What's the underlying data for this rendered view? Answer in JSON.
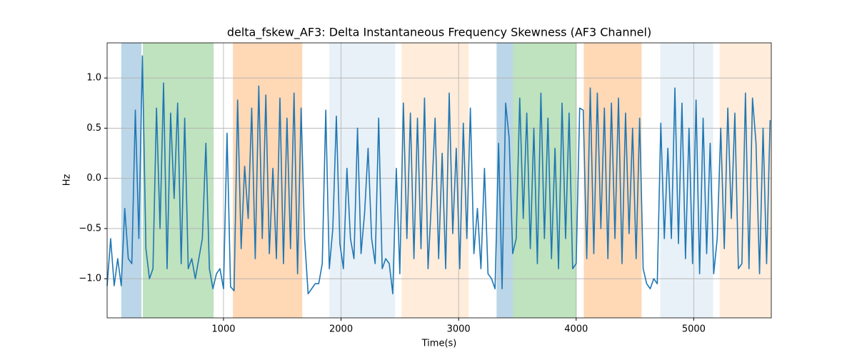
{
  "chart_data": {
    "type": "line",
    "title": "delta_fskew_AF3: Delta Instantaneous Frequency Skewness (AF3 Channel)",
    "xlabel": "Time(s)",
    "ylabel": "Hz",
    "xlim": [
      10,
      5660
    ],
    "ylim": [
      -1.39,
      1.35
    ],
    "xticks": [
      1000,
      2000,
      3000,
      4000,
      5000
    ],
    "yticks": [
      {
        "value": -1.0,
        "label": "−1.0"
      },
      {
        "value": -0.5,
        "label": "−0.5"
      },
      {
        "value": 0,
        "label": "0.0"
      },
      {
        "value": 0.5,
        "label": "0.5"
      },
      {
        "value": 1.0,
        "label": "1.0"
      }
    ],
    "grid": true,
    "spans": [
      {
        "start": 130,
        "end": 302,
        "color": "#1f77b4",
        "opacity": 0.3
      },
      {
        "start": 314,
        "end": 916,
        "color": "#2ca02c",
        "opacity": 0.3
      },
      {
        "start": 1080,
        "end": 1670,
        "color": "#ff7f0e",
        "opacity": 0.3
      },
      {
        "start": 1900,
        "end": 2460,
        "color": "#1f77b4",
        "opacity": 0.1
      },
      {
        "start": 2515,
        "end": 3085,
        "color": "#ff7f0e",
        "opacity": 0.15
      },
      {
        "start": 3323,
        "end": 3463,
        "color": "#1f77b4",
        "opacity": 0.3
      },
      {
        "start": 3463,
        "end": 4004,
        "color": "#2ca02c",
        "opacity": 0.3
      },
      {
        "start": 4065,
        "end": 4557,
        "color": "#ff7f0e",
        "opacity": 0.3
      },
      {
        "start": 4715,
        "end": 5165,
        "color": "#1f77b4",
        "opacity": 0.1
      },
      {
        "start": 5220,
        "end": 5660,
        "color": "#ff7f0e",
        "opacity": 0.15
      }
    ],
    "x": [
      10,
      40,
      70,
      100,
      130,
      160,
      190,
      220,
      250,
      280,
      310,
      340,
      370,
      400,
      430,
      460,
      490,
      520,
      550,
      580,
      610,
      640,
      670,
      700,
      730,
      760,
      790,
      820,
      850,
      880,
      910,
      940,
      970,
      1000,
      1030,
      1060,
      1090,
      1120,
      1150,
      1180,
      1210,
      1240,
      1270,
      1300,
      1330,
      1360,
      1390,
      1420,
      1450,
      1480,
      1510,
      1540,
      1570,
      1600,
      1630,
      1660,
      1690,
      1720,
      1750,
      1780,
      1810,
      1840,
      1870,
      1900,
      1930,
      1960,
      1990,
      2020,
      2050,
      2080,
      2110,
      2140,
      2170,
      2200,
      2230,
      2260,
      2290,
      2320,
      2350,
      2380,
      2410,
      2440,
      2470,
      2500,
      2530,
      2560,
      2590,
      2620,
      2650,
      2680,
      2710,
      2740,
      2770,
      2800,
      2830,
      2860,
      2890,
      2920,
      2950,
      2980,
      3010,
      3040,
      3070,
      3100,
      3130,
      3160,
      3190,
      3220,
      3250,
      3280,
      3310,
      3340,
      3370,
      3400,
      3430,
      3460,
      3490,
      3520,
      3550,
      3580,
      3610,
      3640,
      3670,
      3700,
      3730,
      3760,
      3790,
      3820,
      3850,
      3880,
      3910,
      3940,
      3970,
      4000,
      4030,
      4060,
      4090,
      4120,
      4150,
      4180,
      4210,
      4240,
      4270,
      4300,
      4330,
      4360,
      4390,
      4420,
      4450,
      4480,
      4510,
      4540,
      4570,
      4600,
      4630,
      4660,
      4690,
      4720,
      4750,
      4780,
      4810,
      4840,
      4870,
      4900,
      4930,
      4960,
      4990,
      5020,
      5050,
      5080,
      5110,
      5140,
      5170,
      5200,
      5230,
      5260,
      5290,
      5320,
      5350,
      5380,
      5410,
      5440,
      5470,
      5500,
      5530,
      5560,
      5590,
      5620,
      5650
    ],
    "series": [
      {
        "color": "#1f77b4",
        "values": [
          -1.07,
          -0.6,
          -1.07,
          -0.8,
          -1.07,
          -0.3,
          -0.8,
          -0.85,
          0.68,
          -0.6,
          1.22,
          -0.7,
          -1.0,
          -0.9,
          0.7,
          -0.5,
          0.95,
          -0.9,
          0.65,
          -0.2,
          0.75,
          -0.85,
          0.6,
          -0.9,
          -0.8,
          -1.0,
          -0.8,
          -0.6,
          0.35,
          -0.9,
          -1.1,
          -0.95,
          -0.9,
          -1.1,
          0.45,
          -1.08,
          -1.12,
          0.78,
          -0.7,
          0.12,
          -0.4,
          0.7,
          -0.8,
          0.92,
          -0.6,
          0.83,
          -0.75,
          0.1,
          -0.8,
          0.8,
          -0.85,
          0.6,
          -0.7,
          0.85,
          -0.95,
          0.7,
          -0.6,
          -1.15,
          -1.1,
          -1.05,
          -1.05,
          -0.85,
          0.68,
          -0.9,
          -0.5,
          0.62,
          -0.65,
          -0.9,
          0.1,
          -0.6,
          -0.8,
          0.5,
          -0.75,
          -0.35,
          0.3,
          -0.6,
          -0.85,
          0.6,
          -0.9,
          -0.8,
          -0.85,
          -1.15,
          0.1,
          -0.95,
          0.75,
          -0.6,
          0.65,
          -0.8,
          0.6,
          -0.7,
          0.8,
          -0.9,
          -0.2,
          0.6,
          -0.8,
          0.25,
          -0.9,
          0.85,
          -0.55,
          0.3,
          -0.9,
          0.55,
          -0.6,
          0.7,
          -0.75,
          -0.3,
          -0.9,
          0.1,
          -0.95,
          -1.0,
          -1.1,
          0.35,
          -1.1,
          0.75,
          0.4,
          -0.75,
          -0.6,
          0.8,
          -0.4,
          0.65,
          -0.7,
          0.5,
          -0.85,
          0.85,
          -0.6,
          0.6,
          -0.8,
          0.3,
          -0.9,
          0.75,
          -0.6,
          0.65,
          -0.9,
          -0.85,
          0.7,
          0.68,
          -0.8,
          0.9,
          -0.75,
          0.85,
          -0.5,
          0.7,
          -0.8,
          0.75,
          -0.6,
          0.8,
          -0.85,
          0.65,
          -0.55,
          0.5,
          -0.8,
          0.6,
          -0.9,
          -1.05,
          -1.1,
          -1.0,
          -1.05,
          0.55,
          -0.6,
          0.3,
          -0.6,
          0.9,
          -0.65,
          0.75,
          -0.8,
          0.5,
          -0.85,
          0.78,
          -0.95,
          0.6,
          -0.75,
          0.35,
          -0.95,
          -0.6,
          0.5,
          -0.7,
          0.7,
          -0.4,
          0.65,
          -0.9,
          -0.85,
          0.85,
          -0.9,
          0.8,
          0.35,
          -0.95,
          0.5,
          -0.85,
          0.58
        ]
      }
    ]
  }
}
